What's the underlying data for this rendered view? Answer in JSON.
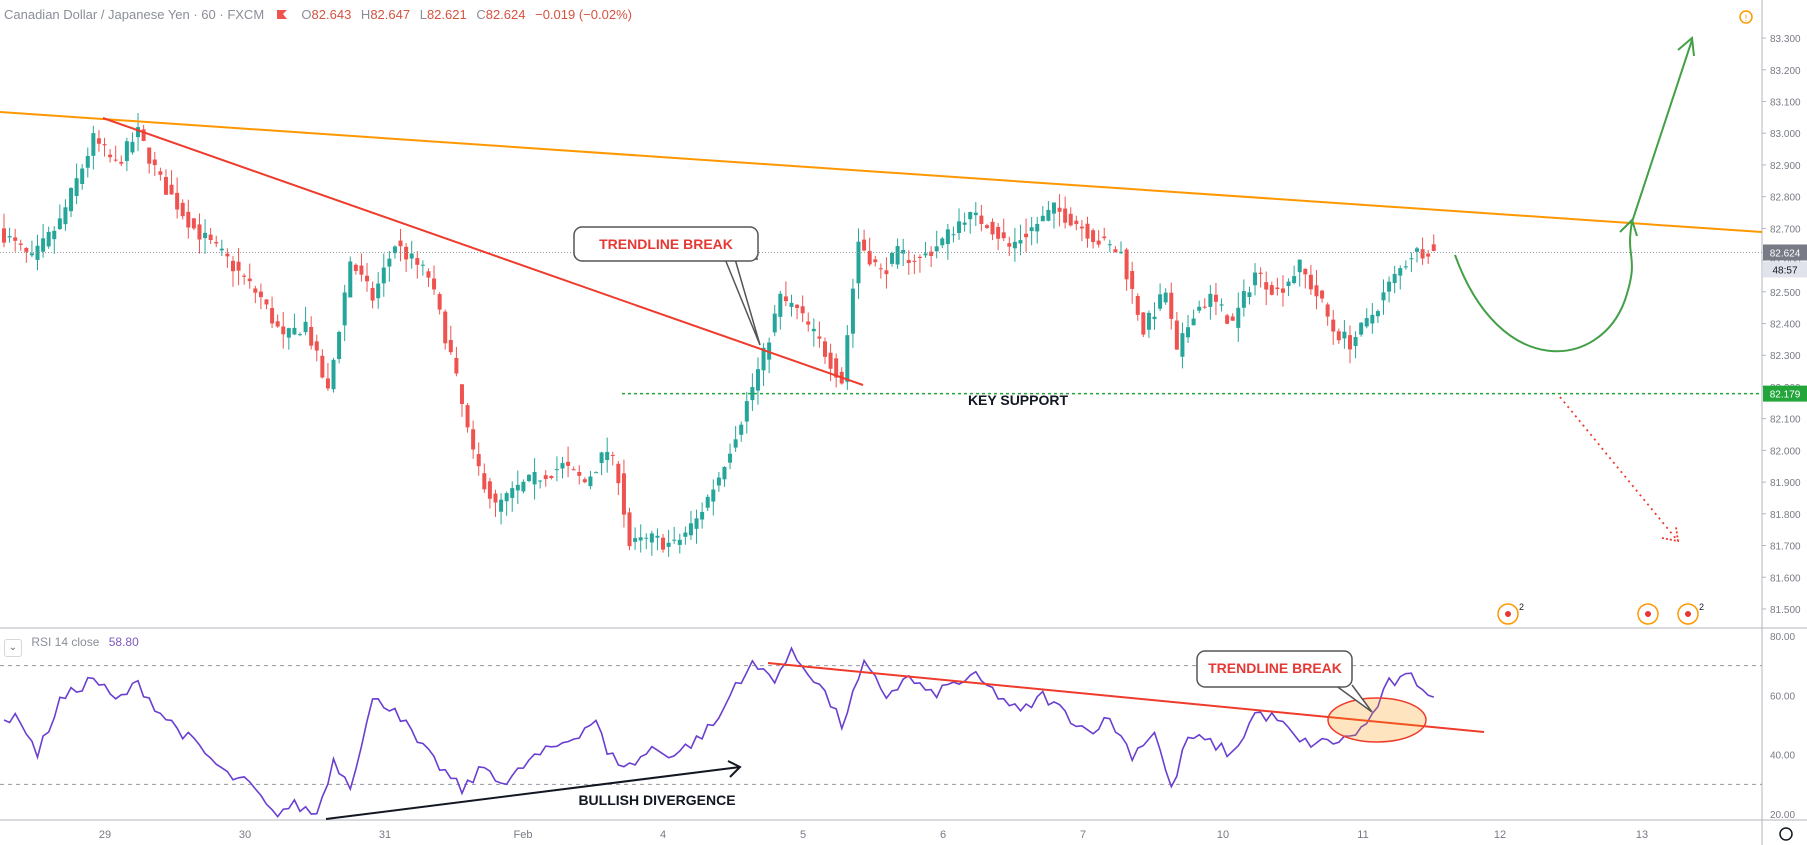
{
  "header": {
    "symbol": "Canadian Dollar / Japanese Yen · 60 · FXCM",
    "o_label": "O",
    "o": "82.643",
    "h_label": "H",
    "h": "82.647",
    "l_label": "L",
    "l": "82.621",
    "c_label": "C",
    "c": "82.624",
    "change": "−0.019 (−0.02%)"
  },
  "rsi_header": {
    "name": "RSI 14 close",
    "value": "58.80",
    "toggle": "⌄"
  },
  "colors": {
    "up": "#26a69a",
    "down": "#ef5350",
    "trendline": "#ef3b2c",
    "resistance": "#ff9800",
    "projection": "#43a047",
    "support": "#22a63a",
    "rsi": "#6a3fd0",
    "price_label": "#787b86"
  },
  "price_axis": {
    "ticks": [
      "83.300",
      "83.200",
      "83.100",
      "83.000",
      "82.900",
      "82.800",
      "82.700",
      "82.600",
      "82.500",
      "82.400",
      "82.300",
      "82.200",
      "82.100",
      "82.000",
      "81.900",
      "81.800",
      "81.700",
      "81.600",
      "81.500"
    ],
    "last_price": "82.624",
    "countdown": "48:57",
    "support_price": "82.179"
  },
  "rsi_axis": {
    "ticks": [
      "80.00",
      "60.00",
      "40.00",
      "20.00"
    ]
  },
  "time_axis": {
    "ticks": [
      "29",
      "30",
      "31",
      "Feb",
      "4",
      "5",
      "6",
      "7",
      "10",
      "11",
      "12",
      "13"
    ]
  },
  "annotations": {
    "trendline_break_price": "TRENDLINE BREAK",
    "key_support": "KEY SUPPORT",
    "trendline_break_rsi": "TRENDLINE BREAK",
    "bullish_divergence": "BULLISH DIVERGENCE"
  },
  "events": [
    "2",
    "2"
  ],
  "chart_data": [
    {
      "type": "candlestick",
      "title": "Canadian Dollar / Japanese Yen · 60 · FXCM",
      "ylim": [
        81.44,
        83.42
      ],
      "x_ticks": [
        "29",
        "30",
        "31",
        "Feb",
        "4",
        "5",
        "6",
        "7",
        "10",
        "11",
        "12",
        "13"
      ],
      "anchors": [
        [
          0,
          82.68
        ],
        [
          5,
          82.6
        ],
        [
          10,
          82.72
        ],
        [
          16,
          82.98
        ],
        [
          20,
          82.9
        ],
        [
          24,
          83.0
        ],
        [
          28,
          82.85
        ],
        [
          34,
          82.7
        ],
        [
          40,
          82.6
        ],
        [
          46,
          82.48
        ],
        [
          50,
          82.35
        ],
        [
          54,
          82.4
        ],
        [
          58,
          82.18
        ],
        [
          62,
          82.6
        ],
        [
          66,
          82.48
        ],
        [
          70,
          82.65
        ],
        [
          76,
          82.55
        ],
        [
          80,
          82.3
        ],
        [
          84,
          81.98
        ],
        [
          88,
          81.82
        ],
        [
          92,
          81.88
        ],
        [
          96,
          81.92
        ],
        [
          100,
          81.95
        ],
        [
          104,
          81.9
        ],
        [
          108,
          82.0
        ],
        [
          110,
          81.92
        ],
        [
          112,
          81.7
        ],
        [
          116,
          81.72
        ],
        [
          120,
          81.7
        ],
        [
          124,
          81.78
        ],
        [
          128,
          81.92
        ],
        [
          132,
          82.1
        ],
        [
          136,
          82.3
        ],
        [
          139,
          82.48
        ],
        [
          142,
          82.44
        ],
        [
          146,
          82.34
        ],
        [
          150,
          82.22
        ],
        [
          153,
          82.66
        ],
        [
          157,
          82.56
        ],
        [
          160,
          82.62
        ],
        [
          164,
          82.6
        ],
        [
          168,
          82.66
        ],
        [
          172,
          82.74
        ],
        [
          176,
          82.72
        ],
        [
          180,
          82.64
        ],
        [
          184,
          82.7
        ],
        [
          188,
          82.76
        ],
        [
          192,
          82.72
        ],
        [
          196,
          82.66
        ],
        [
          200,
          82.62
        ],
        [
          204,
          82.38
        ],
        [
          208,
          82.5
        ],
        [
          210,
          82.3
        ],
        [
          213,
          82.44
        ],
        [
          216,
          82.48
        ],
        [
          220,
          82.4
        ],
        [
          224,
          82.56
        ],
        [
          228,
          82.5
        ],
        [
          232,
          82.58
        ],
        [
          236,
          82.46
        ],
        [
          238,
          82.38
        ],
        [
          241,
          82.34
        ],
        [
          244,
          82.4
        ],
        [
          248,
          82.52
        ],
        [
          252,
          82.62
        ],
        [
          256,
          82.64
        ]
      ],
      "last_close": 82.624,
      "support_level": 82.179
    },
    {
      "type": "line",
      "title": "RSI 14 close",
      "ylim": [
        18,
        82
      ],
      "levels": [
        70,
        30
      ],
      "anchors": [
        [
          0,
          52
        ],
        [
          3,
          52
        ],
        [
          6,
          40
        ],
        [
          10,
          58
        ],
        [
          16,
          66
        ],
        [
          20,
          58
        ],
        [
          24,
          64
        ],
        [
          28,
          54
        ],
        [
          34,
          44
        ],
        [
          40,
          33
        ],
        [
          44,
          30
        ],
        [
          48,
          20
        ],
        [
          52,
          23
        ],
        [
          56,
          20
        ],
        [
          59,
          38
        ],
        [
          62,
          30
        ],
        [
          66,
          58
        ],
        [
          70,
          56
        ],
        [
          74,
          44
        ],
        [
          78,
          36
        ],
        [
          82,
          28
        ],
        [
          86,
          36
        ],
        [
          90,
          30
        ],
        [
          94,
          38
        ],
        [
          98,
          42
        ],
        [
          102,
          46
        ],
        [
          106,
          52
        ],
        [
          108,
          40
        ],
        [
          112,
          36
        ],
        [
          116,
          42
        ],
        [
          120,
          40
        ],
        [
          124,
          45
        ],
        [
          128,
          52
        ],
        [
          131,
          64
        ],
        [
          134,
          70
        ],
        [
          138,
          66
        ],
        [
          141,
          74
        ],
        [
          146,
          64
        ],
        [
          150,
          50
        ],
        [
          154,
          70
        ],
        [
          158,
          60
        ],
        [
          162,
          66
        ],
        [
          166,
          60
        ],
        [
          170,
          64
        ],
        [
          174,
          66
        ],
        [
          178,
          60
        ],
        [
          182,
          54
        ],
        [
          186,
          60
        ],
        [
          190,
          54
        ],
        [
          194,
          48
        ],
        [
          198,
          52
        ],
        [
          202,
          40
        ],
        [
          206,
          48
        ],
        [
          209,
          28
        ],
        [
          212,
          46
        ],
        [
          216,
          44
        ],
        [
          220,
          40
        ],
        [
          224,
          54
        ],
        [
          228,
          52
        ],
        [
          232,
          44
        ],
        [
          236,
          44
        ],
        [
          240,
          45
        ],
        [
          244,
          50
        ],
        [
          248,
          64
        ],
        [
          252,
          66
        ],
        [
          256,
          60
        ]
      ]
    }
  ]
}
